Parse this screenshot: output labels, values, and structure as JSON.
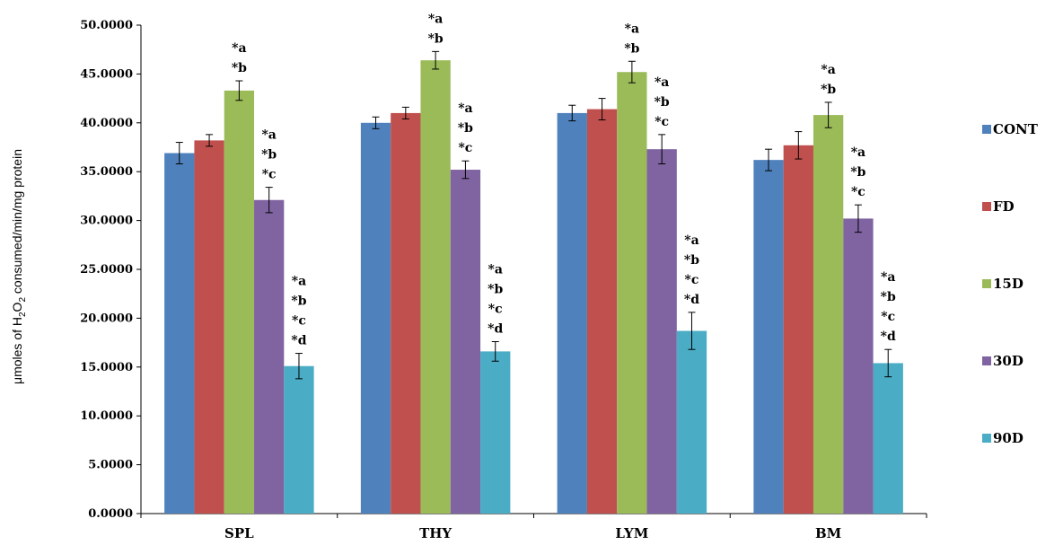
{
  "chart_data": {
    "type": "bar",
    "ylabel_parts": [
      "μmoles of H",
      "2",
      "O",
      "2",
      " consumed/min/mg protein"
    ],
    "categories": [
      "SPL",
      "THY",
      "LYM",
      "BM"
    ],
    "ylim": [
      0,
      50
    ],
    "yticks": [
      "0.0000",
      "5.0000",
      "10.0000",
      "15.0000",
      "20.0000",
      "25.0000",
      "30.0000",
      "35.0000",
      "40.0000",
      "45.0000",
      "50.0000"
    ],
    "grid": false,
    "legend_position": "right",
    "series": [
      {
        "name": "CONT",
        "color": "#4F81BD",
        "values": [
          36.9,
          40.0,
          41.0,
          36.2
        ],
        "errors": [
          1.1,
          0.6,
          0.8,
          1.1
        ]
      },
      {
        "name": "FD",
        "color": "#C0504D",
        "values": [
          38.2,
          41.0,
          41.4,
          37.7
        ],
        "errors": [
          0.6,
          0.6,
          1.1,
          1.4
        ]
      },
      {
        "name": "15D",
        "color": "#9BBB59",
        "values": [
          43.3,
          46.4,
          45.2,
          40.8
        ],
        "errors": [
          1.0,
          0.9,
          1.1,
          1.3
        ]
      },
      {
        "name": "30D",
        "color": "#8064A2",
        "values": [
          32.1,
          35.2,
          37.3,
          30.2
        ],
        "errors": [
          1.3,
          0.9,
          1.5,
          1.4
        ]
      },
      {
        "name": "90D",
        "color": "#4BACC6",
        "values": [
          15.1,
          16.6,
          18.7,
          15.4
        ],
        "errors": [
          1.3,
          1.0,
          1.9,
          1.4
        ]
      }
    ],
    "annotations": [
      {
        "category": "SPL",
        "series": "15D",
        "lines": [
          "*a",
          "*b"
        ]
      },
      {
        "category": "SPL",
        "series": "30D",
        "lines": [
          "*a",
          "*b",
          "*c"
        ]
      },
      {
        "category": "SPL",
        "series": "90D",
        "lines": [
          "*a",
          "*b",
          "*c",
          "*d"
        ]
      },
      {
        "category": "THY",
        "series": "15D",
        "lines": [
          "*a",
          "*b"
        ]
      },
      {
        "category": "THY",
        "series": "30D",
        "lines": [
          "*a",
          "*b",
          "*c"
        ]
      },
      {
        "category": "THY",
        "series": "90D",
        "lines": [
          "*a",
          "*b",
          "*c",
          "*d"
        ]
      },
      {
        "category": "LYM",
        "series": "15D",
        "lines": [
          "*a",
          "*b"
        ]
      },
      {
        "category": "LYM",
        "series": "30D",
        "lines": [
          "*a",
          "*b",
          "*c"
        ]
      },
      {
        "category": "LYM",
        "series": "90D",
        "lines": [
          "*a",
          "*b",
          "*c",
          "*d"
        ]
      },
      {
        "category": "BM",
        "series": "15D",
        "lines": [
          "*a",
          "*b"
        ]
      },
      {
        "category": "BM",
        "series": "30D",
        "lines": [
          "*a",
          "*b",
          "*c"
        ]
      },
      {
        "category": "BM",
        "series": "90D",
        "lines": [
          "*a",
          "*b",
          "*c",
          "*d"
        ]
      }
    ]
  }
}
